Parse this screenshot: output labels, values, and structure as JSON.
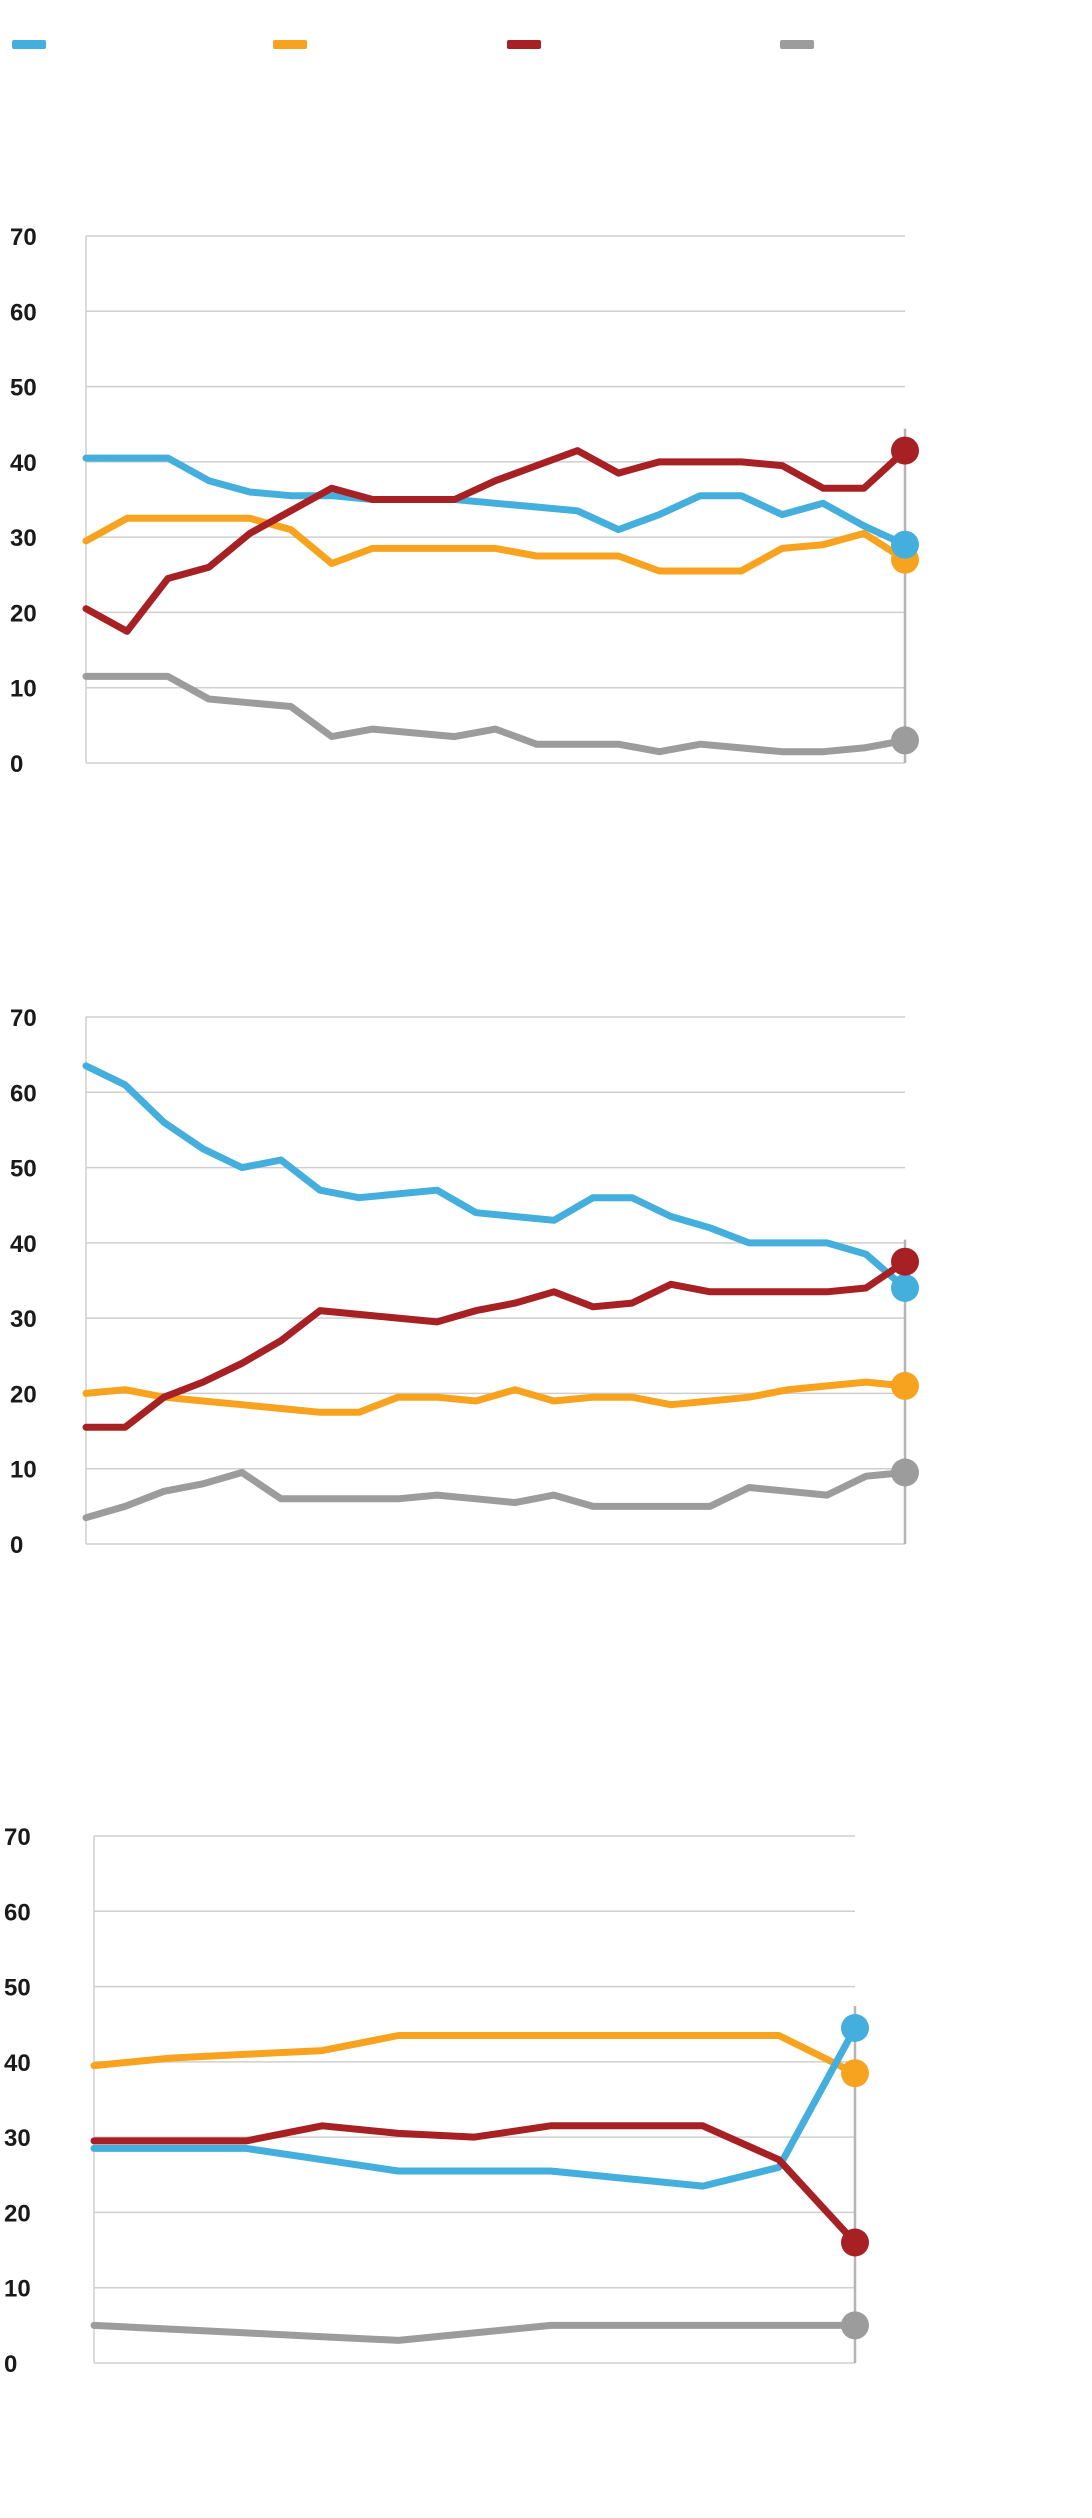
{
  "colors": {
    "blue": "#44aedd",
    "orange": "#f8a31f",
    "red": "#a62024",
    "gray": "#9c9c9c",
    "grid": "#cfcfcf",
    "end_marker_line": "#b5b5b5",
    "tick_text": "#1a1a1a",
    "background": "#ffffff"
  },
  "legend": {
    "items": [
      {
        "name": "blue",
        "color": "#44aedd"
      },
      {
        "name": "orange",
        "color": "#f8a31f"
      },
      {
        "name": "red",
        "color": "#a62024"
      },
      {
        "name": "gray",
        "color": "#9c9c9c"
      }
    ]
  },
  "chart_data": [
    {
      "type": "line",
      "title": "",
      "x_labels": [],
      "ylim": [
        0,
        70
      ],
      "yticks": [
        70,
        60,
        50,
        40,
        30,
        20,
        10,
        0
      ],
      "grid": true,
      "end_dots": true,
      "series": [
        {
          "name": "gray",
          "color": "#9c9c9c",
          "values": [
            11.5,
            11.5,
            11.5,
            8.5,
            8,
            7.5,
            3.5,
            4.5,
            4,
            3.5,
            4.5,
            2.5,
            2.5,
            2.5,
            1.5,
            2.5,
            2,
            1.5,
            1.5,
            2,
            3
          ]
        },
        {
          "name": "orange",
          "color": "#f8a31f",
          "values": [
            29.5,
            32.5,
            32.5,
            32.5,
            32.5,
            31,
            26.5,
            28.5,
            28.5,
            28.5,
            28.5,
            27.5,
            27.5,
            27.5,
            25.5,
            25.5,
            25.5,
            28.5,
            29,
            30.5,
            27
          ]
        },
        {
          "name": "blue",
          "color": "#44aedd",
          "values": [
            40.5,
            40.5,
            40.5,
            37.5,
            36,
            35.5,
            35.5,
            35,
            35,
            35,
            34.5,
            34,
            33.5,
            31,
            33,
            35.5,
            35.5,
            33,
            34.5,
            31.5,
            29
          ]
        },
        {
          "name": "red",
          "color": "#a62024",
          "values": [
            20.5,
            17.5,
            24.5,
            26,
            30.5,
            33.5,
            36.5,
            35,
            35,
            35,
            37.5,
            39.5,
            41.5,
            38.5,
            40,
            40,
            40,
            39.5,
            36.5,
            36.5,
            41.5
          ]
        }
      ]
    },
    {
      "type": "line",
      "title": "",
      "x_labels": [],
      "ylim": [
        0,
        70
      ],
      "yticks": [
        70,
        60,
        50,
        40,
        30,
        20,
        10,
        0
      ],
      "grid": true,
      "end_dots": true,
      "series": [
        {
          "name": "gray",
          "color": "#9c9c9c",
          "values": [
            3.5,
            5,
            7,
            8,
            9.5,
            6,
            6,
            6,
            6,
            6.5,
            6,
            5.5,
            6.5,
            5,
            5,
            5,
            5,
            7.5,
            7,
            6.5,
            9,
            9.5
          ]
        },
        {
          "name": "orange",
          "color": "#f8a31f",
          "values": [
            20,
            20.5,
            19.5,
            19,
            18.5,
            18,
            17.5,
            17.5,
            19.5,
            19.5,
            19,
            20.5,
            19,
            19.5,
            19.5,
            18.5,
            19,
            19.5,
            20.5,
            21,
            21.5,
            21
          ]
        },
        {
          "name": "blue",
          "color": "#44aedd",
          "values": [
            63.5,
            61,
            56,
            52.5,
            50,
            51,
            47,
            46,
            46.5,
            47,
            44,
            43.5,
            43,
            46,
            46,
            43.5,
            42,
            40,
            40,
            40,
            38.5,
            34
          ]
        },
        {
          "name": "red",
          "color": "#a62024",
          "values": [
            15.5,
            15.5,
            19.5,
            21.5,
            24,
            27,
            31,
            30.5,
            30,
            29.5,
            31,
            32,
            33.5,
            31.5,
            32,
            34.5,
            33.5,
            33.5,
            33.5,
            33.5,
            34,
            37.5
          ]
        }
      ]
    },
    {
      "type": "line",
      "title": "",
      "x_labels": [],
      "ylim": [
        0,
        70
      ],
      "yticks": [
        70,
        60,
        50,
        40,
        30,
        20,
        10,
        0
      ],
      "grid": true,
      "end_dots": true,
      "series": [
        {
          "name": "gray",
          "color": "#9c9c9c",
          "values": [
            5,
            4.5,
            4,
            3.5,
            3,
            4,
            5,
            5,
            5,
            5,
            5
          ]
        },
        {
          "name": "orange",
          "color": "#f8a31f",
          "values": [
            39.5,
            40.5,
            41,
            41.5,
            43.5,
            43.5,
            43.5,
            43.5,
            43.5,
            43.5,
            38.5
          ]
        },
        {
          "name": "blue",
          "color": "#44aedd",
          "values": [
            28.5,
            28.5,
            28.5,
            27,
            25.5,
            25.5,
            25.5,
            24.5,
            23.5,
            26,
            44.5
          ]
        },
        {
          "name": "red",
          "color": "#a62024",
          "values": [
            29.5,
            29.5,
            29.5,
            31.5,
            30.5,
            30,
            31.5,
            31.5,
            31.5,
            27,
            16
          ]
        }
      ]
    }
  ]
}
